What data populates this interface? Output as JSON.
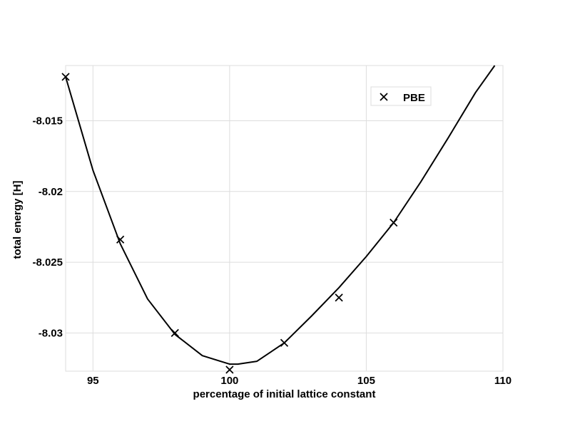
{
  "chart_data": {
    "type": "scatter",
    "xlabel": "percentage of initial lattice constant",
    "ylabel": "total energy [H]",
    "xlim": [
      94,
      110
    ],
    "ylim": [
      -8.0327,
      -8.0111
    ],
    "x_ticks": [
      95,
      100,
      105,
      110
    ],
    "x_tick_labels": [
      "95",
      "100",
      "105",
      "110"
    ],
    "y_ticks": [
      -8.015,
      -8.02,
      -8.025,
      -8.03
    ],
    "y_tick_labels": [
      "-8.015",
      "-8.02",
      "-8.025",
      "-8.03"
    ],
    "grid": true,
    "legend_position": "top-right",
    "series": [
      {
        "name": "PBE",
        "marker": "x",
        "color": "#000000",
        "x": [
          94,
          96,
          98,
          100,
          102,
          104,
          106
        ],
        "y": [
          -8.0119,
          -8.0234,
          -8.03,
          -8.0326,
          -8.0307,
          -8.0275,
          -8.0222
        ]
      }
    ],
    "fit_curve": {
      "color": "#000000",
      "x": [
        94,
        95,
        96,
        97,
        98,
        99,
        100,
        100.3,
        101,
        102,
        103,
        104,
        105,
        106,
        107,
        108,
        109,
        109.7
      ],
      "y": [
        -8.0119,
        -8.0185,
        -8.0237,
        -8.0276,
        -8.0301,
        -8.0316,
        -8.0322,
        -8.0322,
        -8.032,
        -8.0307,
        -8.0288,
        -8.0268,
        -8.0246,
        -8.0222,
        -8.0193,
        -8.0162,
        -8.013,
        -8.0111
      ]
    }
  }
}
